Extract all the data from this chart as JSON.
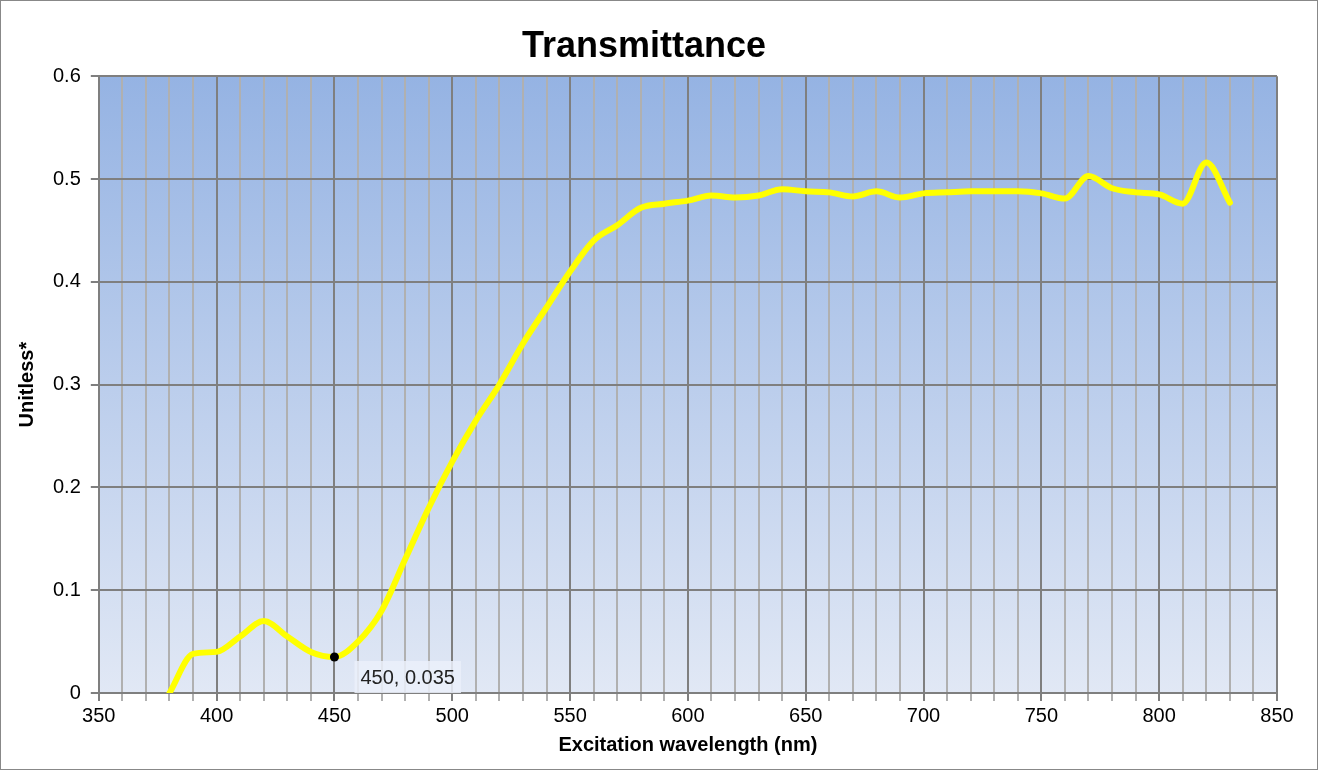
{
  "chart_data": {
    "type": "line",
    "title": "Transmittance",
    "xlabel": "Excitation wavelength (nm)",
    "ylabel": "Unitless*",
    "x": [
      380,
      390,
      400,
      410,
      420,
      430,
      440,
      450,
      460,
      470,
      480,
      490,
      500,
      510,
      520,
      530,
      540,
      550,
      560,
      570,
      580,
      590,
      600,
      610,
      620,
      630,
      640,
      650,
      660,
      670,
      680,
      690,
      700,
      710,
      720,
      730,
      740,
      750,
      760,
      770,
      780,
      790,
      800,
      810,
      820,
      830
    ],
    "series": [
      {
        "color": "#ffff00",
        "values": [
          0,
          0.038,
          0.04,
          0.055,
          0.07,
          0.055,
          0.04,
          0.035,
          0.05,
          0.08,
          0.13,
          0.18,
          0.225,
          0.265,
          0.3,
          0.34,
          0.375,
          0.41,
          0.44,
          0.455,
          0.472,
          0.476,
          0.479,
          0.484,
          0.482,
          0.484,
          0.49,
          0.488,
          0.487,
          0.483,
          0.488,
          0.482,
          0.486,
          0.487,
          0.488,
          0.488,
          0.488,
          0.486,
          0.481,
          0.503,
          0.491,
          0.487,
          0.485,
          0.476,
          0.516,
          0.477
        ]
      }
    ],
    "xlim": [
      350,
      850
    ],
    "xticks": [
      350,
      {
        "value": 360,
        "label": null
      },
      {
        "value": 370,
        "label": null
      },
      {
        "value": 380,
        "label": null
      },
      {
        "value": 390,
        "label": null
      },
      400,
      {
        "value": 410,
        "label": null
      },
      {
        "value": 420,
        "label": null
      },
      {
        "value": 430,
        "label": null
      },
      {
        "value": 440,
        "label": null
      },
      450,
      {
        "value": 460,
        "label": null
      },
      {
        "value": 470,
        "label": null
      },
      {
        "value": 480,
        "label": null
      },
      {
        "value": 490,
        "label": null
      },
      500,
      {
        "value": 510,
        "label": null
      },
      {
        "value": 520,
        "label": null
      },
      {
        "value": 530,
        "label": null
      },
      {
        "value": 540,
        "label": null
      },
      550,
      {
        "value": 560,
        "label": null
      },
      {
        "value": 570,
        "label": null
      },
      {
        "value": 580,
        "label": null
      },
      {
        "value": 590,
        "label": null
      },
      600,
      {
        "value": 610,
        "label": null
      },
      {
        "value": 620,
        "label": null
      },
      {
        "value": 630,
        "label": null
      },
      {
        "value": 640,
        "label": null
      },
      650,
      {
        "value": 660,
        "label": null
      },
      {
        "value": 670,
        "label": null
      },
      {
        "value": 680,
        "label": null
      },
      {
        "value": 690,
        "label": null
      },
      700,
      {
        "value": 710,
        "label": null
      },
      {
        "value": 720,
        "label": null
      },
      {
        "value": 730,
        "label": null
      },
      {
        "value": 740,
        "label": null
      },
      750,
      {
        "value": 760,
        "label": null
      },
      {
        "value": 770,
        "label": null
      },
      {
        "value": 780,
        "label": null
      },
      {
        "value": 790,
        "label": null
      },
      800,
      {
        "value": 810,
        "label": null
      },
      {
        "value": 820,
        "label": null
      },
      {
        "value": 830,
        "label": null
      },
      {
        "value": 840,
        "label": null
      },
      850
    ],
    "ylim": [
      0,
      0.6
    ],
    "yticks": [
      0,
      0.1,
      0.2,
      0.3,
      0.4,
      0.5,
      0.6
    ],
    "grid": true,
    "legend": false,
    "marker": "none",
    "line_style": "solid",
    "annotations": [
      {
        "text": "450, 0.035",
        "x": 450,
        "y": 0.035
      }
    ]
  }
}
